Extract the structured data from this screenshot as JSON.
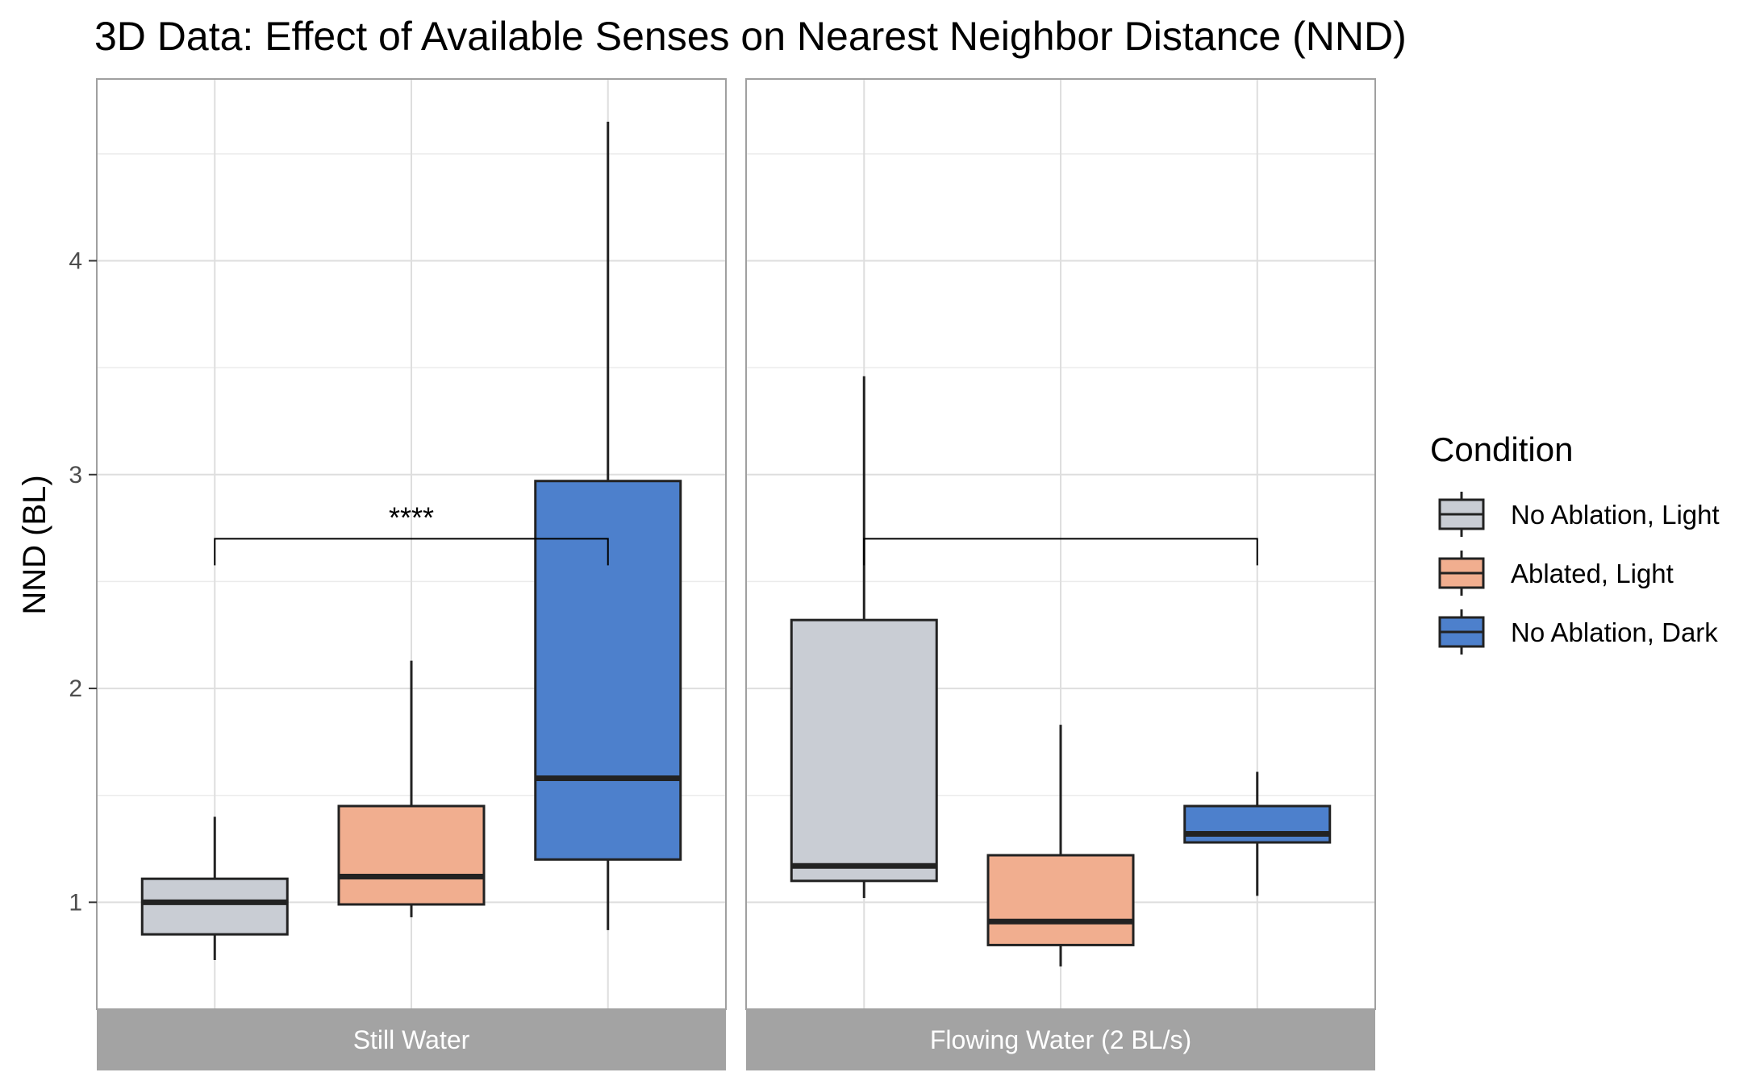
{
  "chart_data": {
    "type": "boxplot",
    "title": "3D Data: Effect of Available Senses on Nearest Neighbor Distance (NND)",
    "xlabel": "",
    "ylabel": "NND (BL)",
    "ylim": [
      0.5,
      4.85
    ],
    "yticks": [
      1,
      2,
      3,
      4
    ],
    "grid": true,
    "legend": {
      "title": "Condition",
      "position": "right",
      "items": [
        {
          "label": "No Ablation, Light",
          "color": "#C9CDD4"
        },
        {
          "label": "Ablated, Light",
          "color": "#F1AE8F"
        },
        {
          "label": "No Ablation, Dark",
          "color": "#4D80CC"
        }
      ]
    },
    "facets": [
      {
        "label": "Still Water",
        "boxes": [
          {
            "condition": "No Ablation, Light",
            "min": 0.73,
            "q1": 0.85,
            "median": 1.0,
            "q3": 1.11,
            "max": 1.4
          },
          {
            "condition": "Ablated, Light",
            "min": 0.93,
            "q1": 0.99,
            "median": 1.12,
            "q3": 1.45,
            "max": 2.13
          },
          {
            "condition": "No Ablation, Dark",
            "min": 0.87,
            "q1": 1.2,
            "median": 1.58,
            "q3": 2.97,
            "max": 4.65
          }
        ],
        "comparison": {
          "from": "No Ablation, Light",
          "to": "No Ablation, Dark",
          "label": "****",
          "y": 2.7
        }
      },
      {
        "label": "Flowing Water (2 BL/s)",
        "boxes": [
          {
            "condition": "No Ablation, Light",
            "min": 1.02,
            "q1": 1.1,
            "median": 1.17,
            "q3": 2.32,
            "max": 3.46
          },
          {
            "condition": "Ablated, Light",
            "min": 0.7,
            "q1": 0.8,
            "median": 0.91,
            "q3": 1.22,
            "max": 1.83
          },
          {
            "condition": "No Ablation, Dark",
            "min": 1.03,
            "q1": 1.28,
            "median": 1.32,
            "q3": 1.45,
            "max": 1.61
          }
        ],
        "comparison": {
          "from": "No Ablation, Light",
          "to": "No Ablation, Dark",
          "label": "",
          "y": 2.7
        }
      }
    ]
  }
}
